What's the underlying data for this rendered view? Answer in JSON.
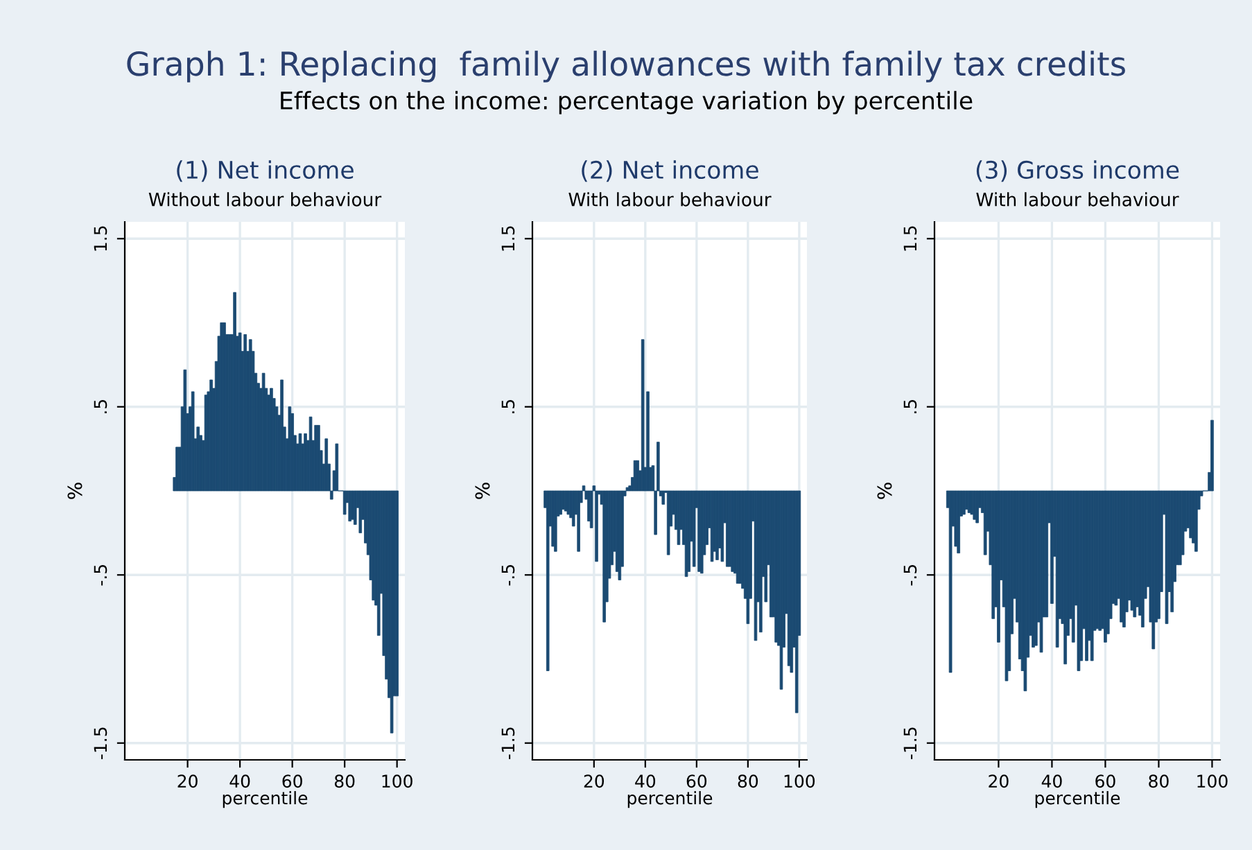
{
  "chart_data": [
    {
      "type": "bar",
      "title": "(1) Net income",
      "subtitle": "Without labour behaviour",
      "xlabel": "percentile",
      "ylabel": "%",
      "annotations": [
        "Graph 1: Replacing  family allowances with family tax credits",
        "Effects on the income: percentage variation by percentile"
      ],
      "color": "#1b4a72",
      "x": [
        15,
        16,
        17,
        18,
        19,
        20,
        21,
        22,
        23,
        24,
        25,
        26,
        27,
        28,
        29,
        30,
        31,
        32,
        33,
        34,
        35,
        36,
        37,
        38,
        39,
        40,
        41,
        42,
        43,
        44,
        45,
        46,
        47,
        48,
        49,
        50,
        51,
        52,
        53,
        54,
        55,
        56,
        57,
        58,
        59,
        60,
        61,
        62,
        63,
        64,
        65,
        66,
        67,
        68,
        69,
        70,
        71,
        72,
        73,
        74,
        75,
        76,
        77,
        78,
        79,
        80,
        81,
        82,
        83,
        84,
        85,
        86,
        87,
        88,
        89,
        90,
        91,
        92,
        93,
        94,
        95,
        96,
        97,
        98,
        99,
        100
      ],
      "values": [
        0.08,
        0.26,
        0.26,
        0.5,
        0.72,
        0.46,
        0.5,
        0.59,
        0.31,
        0.38,
        0.33,
        0.3,
        0.57,
        0.59,
        0.66,
        0.61,
        0.77,
        0.92,
        1.0,
        1.0,
        0.93,
        0.93,
        0.93,
        1.18,
        0.92,
        0.94,
        0.83,
        0.93,
        0.83,
        0.9,
        0.83,
        0.7,
        0.64,
        0.61,
        0.7,
        0.61,
        0.57,
        0.61,
        0.55,
        0.5,
        0.45,
        0.66,
        0.38,
        0.31,
        0.5,
        0.46,
        0.33,
        0.28,
        0.34,
        0.28,
        0.34,
        0.3,
        0.44,
        0.3,
        0.39,
        0.39,
        0.24,
        0.16,
        0.31,
        0.16,
        -0.05,
        0.12,
        0.28,
        0.0,
        0.0,
        -0.14,
        -0.07,
        -0.18,
        -0.17,
        -0.2,
        -0.1,
        -0.25,
        -0.17,
        -0.31,
        -0.38,
        -0.53,
        -0.65,
        -0.68,
        -0.86,
        -0.61,
        -0.98,
        -1.12,
        -1.23,
        -1.44,
        -1.22,
        -1.22
      ],
      "xlim": [
        -4,
        103
      ],
      "ylim": [
        -1.6,
        1.6
      ],
      "xticks": [
        20,
        40,
        60,
        80,
        100
      ],
      "yticks": [
        {
          "value": -1.5,
          "label": "-1.5"
        },
        {
          "value": -0.5,
          "label": "-.5"
        },
        {
          "value": 0.5,
          "label": ".5"
        },
        {
          "value": 1.5,
          "label": "1.5"
        }
      ],
      "grid": true
    },
    {
      "type": "bar",
      "title": "(2) Net income",
      "subtitle": "With labour behaviour",
      "xlabel": "percentile",
      "ylabel": "%",
      "color": "#1b4a72",
      "x": [
        1,
        2,
        3,
        4,
        5,
        6,
        7,
        8,
        9,
        10,
        11,
        12,
        13,
        14,
        15,
        16,
        17,
        18,
        19,
        20,
        21,
        22,
        23,
        24,
        25,
        26,
        27,
        28,
        29,
        30,
        31,
        32,
        33,
        34,
        35,
        36,
        37,
        38,
        39,
        40,
        41,
        42,
        43,
        44,
        45,
        46,
        47,
        48,
        49,
        50,
        51,
        52,
        53,
        54,
        55,
        56,
        57,
        58,
        59,
        60,
        61,
        62,
        63,
        64,
        65,
        66,
        67,
        68,
        69,
        70,
        71,
        72,
        73,
        74,
        75,
        76,
        77,
        78,
        79,
        80,
        81,
        82,
        83,
        84,
        85,
        86,
        87,
        88,
        89,
        90,
        91,
        92,
        93,
        94,
        95,
        96,
        97,
        98,
        99,
        100
      ],
      "values": [
        -0.1,
        -1.07,
        -0.21,
        -0.33,
        -0.36,
        -0.15,
        -0.14,
        -0.11,
        -0.12,
        -0.14,
        -0.16,
        -0.21,
        -0.14,
        -0.36,
        -0.07,
        0.03,
        -0.05,
        -0.18,
        -0.22,
        0.03,
        -0.42,
        -0.02,
        -0.08,
        -0.78,
        -0.66,
        -0.52,
        -0.44,
        -0.36,
        -0.48,
        -0.53,
        -0.45,
        -0.03,
        0.02,
        0.03,
        0.08,
        0.18,
        0.18,
        0.12,
        0.9,
        0.14,
        0.59,
        0.14,
        0.15,
        -0.26,
        0.29,
        -0.03,
        -0.08,
        -0.01,
        -0.38,
        -0.21,
        -0.14,
        -0.23,
        -0.32,
        -0.23,
        -0.32,
        -0.51,
        -0.48,
        -0.3,
        -0.45,
        -0.1,
        -0.48,
        -0.49,
        -0.38,
        -0.32,
        -0.22,
        -0.42,
        -0.36,
        -0.41,
        -0.34,
        -0.42,
        -0.19,
        -0.45,
        -0.45,
        -0.48,
        -0.49,
        -0.55,
        -0.55,
        -0.58,
        -0.64,
        -0.79,
        -0.64,
        -0.18,
        -0.89,
        -0.66,
        -0.84,
        -0.51,
        -0.66,
        -0.44,
        -0.75,
        -0.75,
        -0.9,
        -0.92,
        -1.18,
        -0.93,
        -0.73,
        -1.04,
        -1.08,
        -0.93,
        -1.32,
        -0.86
      ],
      "xlim": [
        -4,
        103
      ],
      "ylim": [
        -1.6,
        1.6
      ],
      "xticks": [
        20,
        40,
        60,
        80,
        100
      ],
      "yticks": [
        {
          "value": -1.5,
          "label": "-1.5"
        },
        {
          "value": -0.5,
          "label": "-.5"
        },
        {
          "value": 0.5,
          "label": ".5"
        },
        {
          "value": 1.5,
          "label": "1.5"
        }
      ],
      "grid": true
    },
    {
      "type": "bar",
      "title": "(3) Gross income",
      "subtitle": "With labour behaviour",
      "xlabel": "percentile",
      "ylabel": "%",
      "color": "#1b4a72",
      "x": [
        1,
        2,
        3,
        4,
        5,
        6,
        7,
        8,
        9,
        10,
        11,
        12,
        13,
        14,
        15,
        16,
        17,
        18,
        19,
        20,
        21,
        22,
        23,
        24,
        25,
        26,
        27,
        28,
        29,
        30,
        31,
        32,
        33,
        34,
        35,
        36,
        37,
        38,
        39,
        40,
        41,
        42,
        43,
        44,
        45,
        46,
        47,
        48,
        49,
        50,
        51,
        52,
        53,
        54,
        55,
        56,
        57,
        58,
        59,
        60,
        61,
        62,
        63,
        64,
        65,
        66,
        67,
        68,
        69,
        70,
        71,
        72,
        73,
        74,
        75,
        76,
        77,
        78,
        79,
        80,
        81,
        82,
        83,
        84,
        85,
        86,
        87,
        88,
        89,
        90,
        91,
        92,
        93,
        94,
        95,
        96,
        97,
        98,
        99,
        100
      ],
      "values": [
        -0.1,
        -1.08,
        -0.21,
        -0.33,
        -0.37,
        -0.15,
        -0.14,
        -0.11,
        -0.13,
        -0.14,
        -0.17,
        -0.19,
        -0.1,
        -0.13,
        -0.38,
        -0.24,
        -0.44,
        -0.76,
        -0.69,
        -0.9,
        -0.53,
        -0.69,
        -1.13,
        -1.07,
        -0.85,
        -0.64,
        -0.78,
        -1.0,
        -1.07,
        -1.19,
        -0.99,
        -0.86,
        -0.93,
        -0.92,
        -0.78,
        -0.96,
        -0.75,
        -0.75,
        -0.19,
        -0.67,
        -0.39,
        -0.93,
        -0.76,
        -0.79,
        -1.03,
        -0.86,
        -0.76,
        -0.9,
        -0.68,
        -1.07,
        -1.01,
        -0.82,
        -1.01,
        -0.89,
        -1.01,
        -0.83,
        -0.82,
        -0.83,
        -0.82,
        -0.9,
        -0.85,
        -0.76,
        -0.67,
        -0.68,
        -0.64,
        -0.78,
        -0.81,
        -0.72,
        -0.65,
        -0.71,
        -0.75,
        -0.69,
        -0.74,
        -0.81,
        -0.64,
        -0.57,
        -0.78,
        -0.94,
        -0.78,
        -0.76,
        -0.6,
        -0.14,
        -0.79,
        -0.6,
        -0.72,
        -0.54,
        -0.44,
        -0.44,
        -0.38,
        -0.24,
        -0.22,
        -0.28,
        -0.31,
        -0.36,
        -0.11,
        -0.03,
        0.0,
        0.0,
        0.11,
        0.42
      ],
      "xlim": [
        -4,
        103
      ],
      "ylim": [
        -1.6,
        1.6
      ],
      "xticks": [
        20,
        40,
        60,
        80,
        100
      ],
      "yticks": [
        {
          "value": -1.5,
          "label": "-1.5"
        },
        {
          "value": -0.5,
          "label": "-.5"
        },
        {
          "value": 0.5,
          "label": ".5"
        },
        {
          "value": 1.5,
          "label": "1.5"
        }
      ],
      "grid": true
    }
  ]
}
